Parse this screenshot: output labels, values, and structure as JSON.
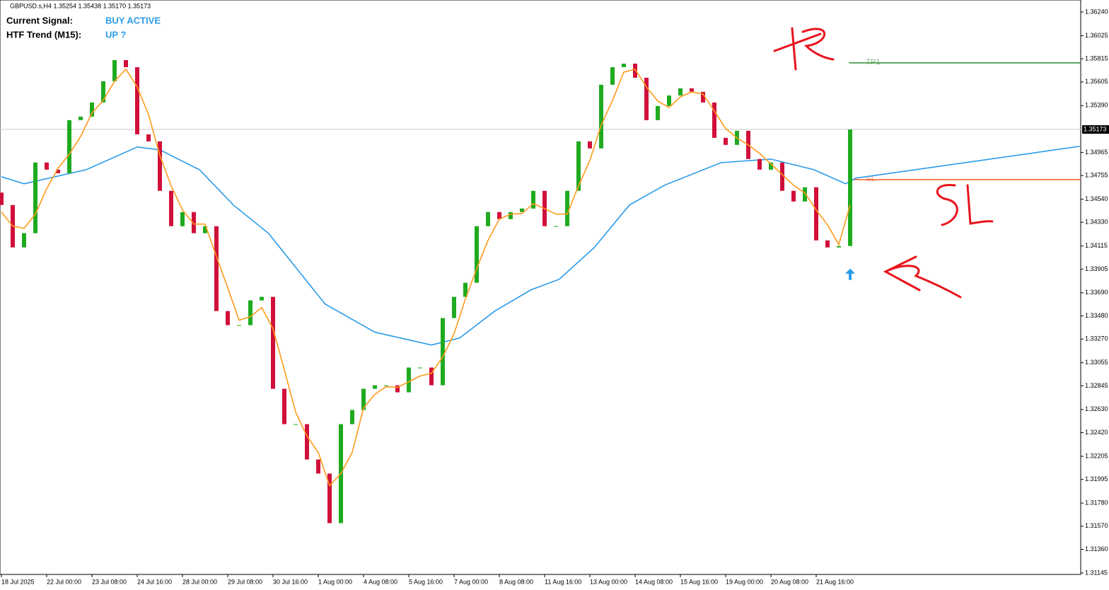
{
  "header": {
    "symbol_line": "GBPUSD.s,H4  1.35254 1.35438 1.35170 1.35173"
  },
  "panel": {
    "signal_label": "Current Signal:",
    "signal_value": "BUY ACTIVE",
    "trend_label": "HTF Trend (M15):",
    "trend_value": "UP ?"
  },
  "chart_data": {
    "type": "candlestick",
    "up_color": "#1faa1f",
    "down_color": "#d0103a",
    "open": 1.346,
    "close": [
      1.34487,
      1.34102,
      1.34231,
      1.34873,
      1.34808,
      1.34776,
      1.35258,
      1.3529,
      1.35418,
      1.35611,
      1.35803,
      1.35739,
      1.35129,
      1.35065,
      1.34616,
      1.34295,
      1.34423,
      1.34231,
      1.34295,
      1.33524,
      1.33396,
      1.33396,
      1.33621,
      1.33653,
      1.32818,
      1.32497,
      1.32497,
      1.32176,
      1.32048,
      1.31598,
      1.32497,
      1.32626,
      1.32818,
      1.3285,
      1.3285,
      1.32786,
      1.33011,
      1.33011,
      1.3285,
      1.3346,
      1.33653,
      1.33781,
      1.34295,
      1.34423,
      1.34359,
      1.34423,
      1.34455,
      1.34616,
      1.34295,
      1.34295,
      1.34616,
      1.35065,
      1.35001,
      1.35579,
      1.35739,
      1.35771,
      1.35643,
      1.35258,
      1.35386,
      1.35482,
      1.35547,
      1.35515,
      1.35418,
      1.35097,
      1.35033,
      1.35161,
      1.34905,
      1.34808,
      1.34873,
      1.34616,
      1.34519,
      1.34648,
      1.34166,
      1.34102,
      1.34115,
      1.35173
    ],
    "fast_ma": {
      "color": "#ff9a1a",
      "values": [
        1.34423,
        1.34295,
        1.34275,
        1.34404,
        1.34635,
        1.34821,
        1.34949,
        1.3511,
        1.35322,
        1.35437,
        1.35611,
        1.3572,
        1.35559,
        1.35309,
        1.34937,
        1.34661,
        1.34442,
        1.34314,
        1.34314,
        1.34019,
        1.33736,
        1.33441,
        1.33473,
        1.33556,
        1.33364,
        1.32991,
        1.32606,
        1.32388,
        1.3224,
        1.31938,
        1.32048,
        1.3224,
        1.32645,
        1.32767,
        1.32837,
        1.32831,
        1.32882,
        1.32934,
        1.32959,
        1.33107,
        1.33319,
        1.33633,
        1.33909,
        1.34166,
        1.34359,
        1.34404,
        1.3441,
        1.345,
        1.34455,
        1.34404,
        1.34404,
        1.34661,
        1.34892,
        1.35213,
        1.35437,
        1.35694,
        1.3572,
        1.35559,
        1.35431,
        1.35373,
        1.35469,
        1.35514,
        1.35495,
        1.35341,
        1.35181,
        1.35097,
        1.35033,
        1.34956,
        1.3486,
        1.34763,
        1.34667,
        1.34596,
        1.34442,
        1.34307,
        1.34128,
        1.34487
      ]
    },
    "slow_ma": {
      "color": "#2b9be8",
      "x": [
        0,
        2,
        7.5,
        12,
        14,
        17.5,
        20.5,
        23.6,
        28.6,
        33,
        38,
        40.5,
        43.6,
        46.8,
        49.3,
        52.4,
        55.5,
        58.6,
        63.6,
        68,
        71.8,
        74.6,
        75.5,
        95.3
      ],
      "values": [
        1.34744,
        1.3468,
        1.34808,
        1.35014,
        1.34988,
        1.34808,
        1.34487,
        1.3423,
        1.33588,
        1.33332,
        1.33216,
        1.3328,
        1.33524,
        1.33717,
        1.33813,
        1.34102,
        1.34487,
        1.34667,
        1.34872,
        1.34904,
        1.34808,
        1.3468,
        1.34731,
        1.3502
      ]
    },
    "levels": [
      {
        "label": "TP1",
        "value": 1.35778,
        "color": "#2e8b2e",
        "start": 74.9
      },
      {
        "label": "SL",
        "value": 1.34718,
        "color": "#ff5a1f",
        "start": 74.9
      }
    ],
    "current_price": {
      "value": 1.35173,
      "label": "1.35173"
    },
    "signal_arrow": {
      "x": 75,
      "value": 1.33858,
      "color": "#2b9be8"
    },
    "xlim": [
      -0.125,
      95.375
    ],
    "ylim": [
      1.31132,
      1.36349
    ],
    "xticks": [
      {
        "value": 0,
        "label": "18 Jul 2025"
      },
      {
        "value": 4,
        "label": "22 Jul 00:00"
      },
      {
        "value": 8,
        "label": "23 Jul 08:00"
      },
      {
        "value": 12,
        "label": "24 Jul 16:00"
      },
      {
        "value": 16,
        "label": "28 Jul 00:00"
      },
      {
        "value": 20,
        "label": "29 Jul 08:00"
      },
      {
        "value": 24,
        "label": "30 Jul 16:00"
      },
      {
        "value": 28,
        "label": "1 Aug 00:00"
      },
      {
        "value": 32,
        "label": "4 Aug 08:00"
      },
      {
        "value": 36,
        "label": "5 Aug 16:00"
      },
      {
        "value": 40,
        "label": "7 Aug 00:00"
      },
      {
        "value": 44,
        "label": "8 Aug 08:00"
      },
      {
        "value": 48,
        "label": "11 Aug 16:00"
      },
      {
        "value": 52,
        "label": "13 Aug 00:00"
      },
      {
        "value": 56,
        "label": "14 Aug 08:00"
      },
      {
        "value": 60,
        "label": "15 Aug 16:00"
      },
      {
        "value": 64,
        "label": "19 Aug 00:00"
      },
      {
        "value": 68,
        "label": "20 Aug 08:00"
      },
      {
        "value": 72,
        "label": "21 Aug 16:00"
      }
    ],
    "yticks": [
      {
        "value": 1.3624,
        "label": "1.36240"
      },
      {
        "value": 1.36025,
        "label": "1.36025"
      },
      {
        "value": 1.35815,
        "label": "1.35815"
      },
      {
        "value": 1.35605,
        "label": "1.35605"
      },
      {
        "value": 1.3539,
        "label": "1.35390"
      },
      {
        "value": 1.34965,
        "label": "1.34965"
      },
      {
        "value": 1.34755,
        "label": "1.34755"
      },
      {
        "value": 1.3454,
        "label": "1.34540"
      },
      {
        "value": 1.3433,
        "label": "1.34330"
      },
      {
        "value": 1.34115,
        "label": "1.34115"
      },
      {
        "value": 1.33905,
        "label": "1.33905"
      },
      {
        "value": 1.3369,
        "label": "1.33690"
      },
      {
        "value": 1.3348,
        "label": "1.33480"
      },
      {
        "value": 1.3327,
        "label": "1.33270"
      },
      {
        "value": 1.33055,
        "label": "1.33055"
      },
      {
        "value": 1.32845,
        "label": "1.32845"
      },
      {
        "value": 1.3263,
        "label": "1.32630"
      },
      {
        "value": 1.3242,
        "label": "1.32420"
      },
      {
        "value": 1.32205,
        "label": "1.32205"
      },
      {
        "value": 1.31995,
        "label": "1.31995"
      },
      {
        "value": 1.3178,
        "label": "1.31780"
      },
      {
        "value": 1.3157,
        "label": "1.31570"
      },
      {
        "value": 1.3136,
        "label": "1.31360"
      },
      {
        "value": 1.31145,
        "label": "1.31145"
      }
    ]
  }
}
